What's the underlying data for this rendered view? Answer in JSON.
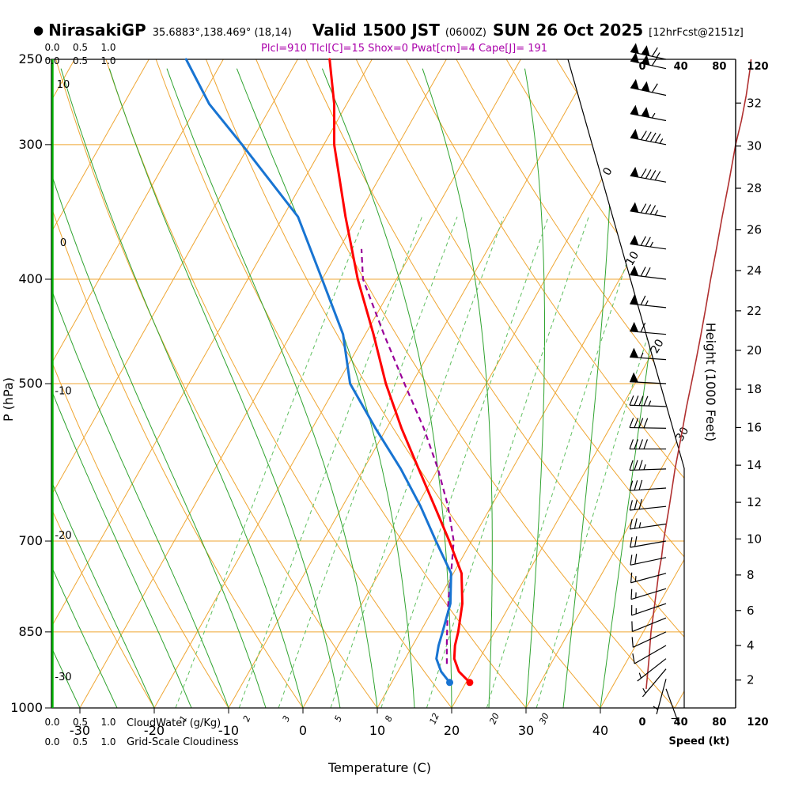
{
  "header": {
    "station_marker": "●",
    "station": "NirasakiGP",
    "coords": "35.6883°,138.469° (18,14)",
    "valid": "Valid 1500 JST",
    "zulu": "(0600Z)",
    "date": "SUN 26 Oct 2025",
    "fcst": "[12hrFcst@2151z]",
    "indices": "Plcl=910 Tlcl[C]=15 Shox=0 Pwat[cm]=4 Cape[J]= 191"
  },
  "axes": {
    "pressure_label": "P (hPa)",
    "pressure_ticks": [
      250,
      300,
      400,
      500,
      700,
      850,
      1000
    ],
    "temp_label": "Temperature (C)",
    "temp_ticks": [
      -30,
      -20,
      -10,
      0,
      10,
      20,
      30,
      40
    ],
    "height_label": "Height (1000 Feet)",
    "height_ticks": [
      2,
      4,
      6,
      8,
      10,
      12,
      14,
      16,
      18,
      20,
      22,
      24,
      26,
      28,
      30,
      32
    ],
    "speed_label": "Speed (kt)",
    "speed_ticks": [
      0,
      40,
      80,
      120
    ],
    "cloudwater_label": "CloudWater (g/Kg)",
    "cloudiness_label": "Grid-Scale Cloudiness",
    "mini_scale": [
      "0.0",
      "0.5",
      "1.0"
    ]
  },
  "chart_data": {
    "type": "line",
    "subtype": "skew-t-log-p-sounding",
    "title": "NirasakiGP Valid 1500 JST (0600Z) SUN 26 Oct 2025 [12hrFcst@2151z]",
    "xlabel": "Temperature (C)",
    "ylabel": "P (hPa)",
    "pressure_range": [
      1000,
      250
    ],
    "temp_range": [
      -30,
      40
    ],
    "height_axis_kft_range": [
      2,
      32
    ],
    "speed_axis_kt_range": [
      0,
      120
    ],
    "sounding": [
      {
        "p": 947,
        "t": 20.5,
        "td": 17.8
      },
      {
        "p": 925,
        "t": 18.2,
        "td": 15.8
      },
      {
        "p": 900,
        "t": 16.6,
        "td": 14.2
      },
      {
        "p": 875,
        "t": 15.7,
        "td": 13.5
      },
      {
        "p": 850,
        "t": 15.1,
        "td": 13.0
      },
      {
        "p": 800,
        "t": 13.5,
        "td": 11.9
      },
      {
        "p": 750,
        "t": 11.1,
        "td": 9.7
      },
      {
        "p": 700,
        "t": 7.0,
        "td": 5.2
      },
      {
        "p": 650,
        "t": 2.4,
        "td": 0.5
      },
      {
        "p": 600,
        "t": -2.6,
        "td": -5.0
      },
      {
        "p": 550,
        "t": -8.0,
        "td": -11.5
      },
      {
        "p": 500,
        "t": -13.5,
        "td": -18.3
      },
      {
        "p": 450,
        "t": -18.9,
        "td": -23.0
      },
      {
        "p": 400,
        "t": -25.2,
        "td": -30.0
      },
      {
        "p": 350,
        "t": -31.6,
        "td": -38.0
      },
      {
        "p": 300,
        "t": -38.6,
        "td": -51.0
      },
      {
        "p": 275,
        "t": -41.7,
        "td": -58.5
      },
      {
        "p": 250,
        "t": -45.7,
        "td": -65.0
      }
    ],
    "parcel": [
      {
        "p": 910,
        "t": 16.0
      },
      {
        "p": 870,
        "t": 14.4
      },
      {
        "p": 830,
        "t": 12.8
      },
      {
        "p": 790,
        "t": 11.2
      },
      {
        "p": 750,
        "t": 9.7
      },
      {
        "p": 700,
        "t": 7.6
      },
      {
        "p": 650,
        "t": 4.2
      },
      {
        "p": 600,
        "t": 0.0
      },
      {
        "p": 550,
        "t": -5.0
      },
      {
        "p": 500,
        "t": -11.0
      },
      {
        "p": 450,
        "t": -17.5
      },
      {
        "p": 400,
        "t": -24.5
      },
      {
        "p": 375,
        "t": -27.0
      }
    ],
    "wind": [
      {
        "p": 960,
        "s": 4,
        "d": 160
      },
      {
        "p": 940,
        "s": 5,
        "d": 195
      },
      {
        "p": 920,
        "s": 6,
        "d": 220
      },
      {
        "p": 900,
        "s": 7,
        "d": 232
      },
      {
        "p": 875,
        "s": 8,
        "d": 240
      },
      {
        "p": 850,
        "s": 9,
        "d": 245
      },
      {
        "p": 825,
        "s": 11,
        "d": 248
      },
      {
        "p": 800,
        "s": 13,
        "d": 251
      },
      {
        "p": 775,
        "s": 15,
        "d": 253
      },
      {
        "p": 750,
        "s": 17,
        "d": 255
      },
      {
        "p": 725,
        "s": 20,
        "d": 258
      },
      {
        "p": 700,
        "s": 22,
        "d": 260
      },
      {
        "p": 675,
        "s": 25,
        "d": 262
      },
      {
        "p": 650,
        "s": 28,
        "d": 264
      },
      {
        "p": 625,
        "s": 31,
        "d": 266
      },
      {
        "p": 600,
        "s": 34,
        "d": 268
      },
      {
        "p": 575,
        "s": 38,
        "d": 270
      },
      {
        "p": 550,
        "s": 42,
        "d": 271
      },
      {
        "p": 525,
        "s": 46,
        "d": 272
      },
      {
        "p": 500,
        "s": 51,
        "d": 273
      },
      {
        "p": 475,
        "s": 56,
        "d": 274
      },
      {
        "p": 450,
        "s": 61,
        "d": 275
      },
      {
        "p": 425,
        "s": 66,
        "d": 276
      },
      {
        "p": 400,
        "s": 71,
        "d": 277
      },
      {
        "p": 375,
        "s": 77,
        "d": 278
      },
      {
        "p": 350,
        "s": 83,
        "d": 279
      },
      {
        "p": 325,
        "s": 90,
        "d": 280
      },
      {
        "p": 300,
        "s": 97,
        "d": 281
      },
      {
        "p": 285,
        "s": 103,
        "d": 281
      },
      {
        "p": 270,
        "s": 108,
        "d": 282
      },
      {
        "p": 255,
        "s": 112,
        "d": 282
      },
      {
        "p": 250,
        "s": 113,
        "d": 282
      }
    ],
    "grid": {
      "pressure_lines": [
        300,
        400,
        500,
        700,
        850
      ],
      "isotherms": [
        -80,
        50,
        10
      ],
      "dry_adiabats": [
        -20,
        120,
        10
      ],
      "moist_adiabats": [
        -30,
        40,
        5
      ]
    },
    "isotherm_labels": [
      0,
      10,
      20,
      30
    ],
    "dry_adiabat_labels": [
      10,
      0,
      -10,
      -20,
      -30
    ],
    "mixing_ratio_lines": [
      1,
      2,
      3,
      5,
      8,
      12,
      20,
      30
    ],
    "colors": {
      "temperature": "#ff0000",
      "dewpoint": "#1874d2",
      "parcel": "#990099",
      "speed_curve": "#b03030",
      "speed_text": "#e60000",
      "grid_orange": "#efa633",
      "moist_green": "#2fa32f",
      "mixing_green": "#5fbf5f",
      "cloudwater": "#00b400",
      "indices_magenta": "#aa00aa"
    }
  }
}
